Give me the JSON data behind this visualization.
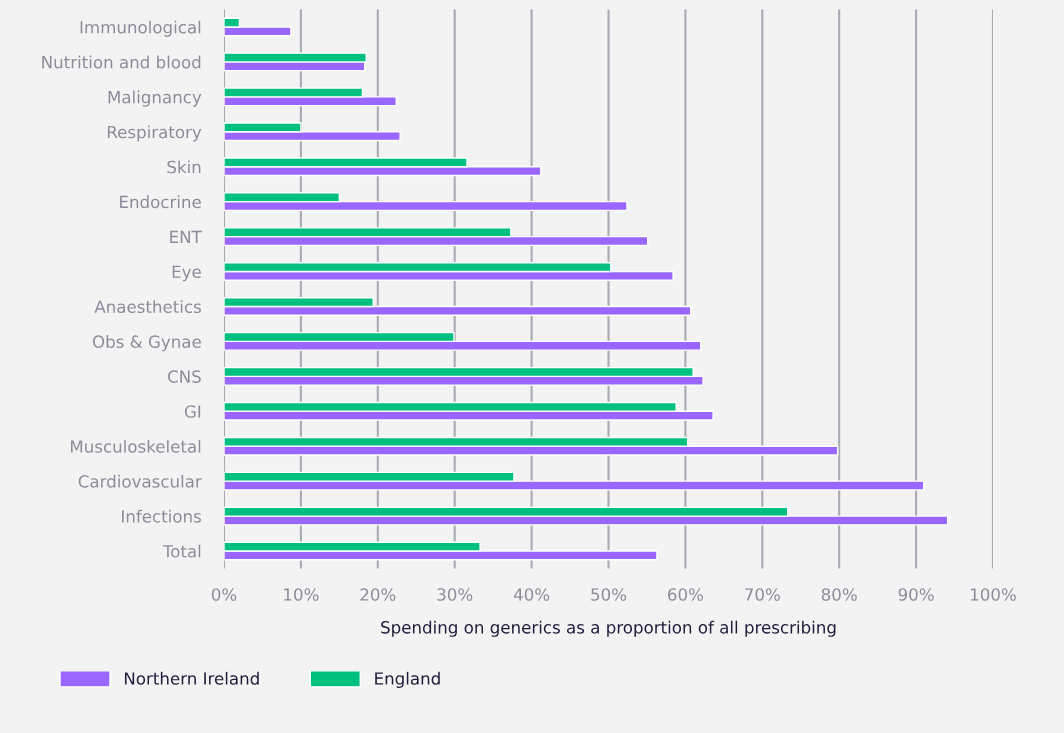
{
  "chart_data": {
    "type": "bar",
    "orientation": "horizontal",
    "xlabel": "Spending on generics as a proportion of all prescribing",
    "categories": [
      "Immunological",
      "Nutrition and blood",
      "Malignancy",
      "Respiratory",
      "Skin",
      "Endocrine",
      "ENT",
      "Eye",
      "Anaesthetics",
      "Obs & Gynae",
      "CNS",
      "GI",
      "Musculoskeletal",
      "Cardiovascular",
      "Infections",
      "Total"
    ],
    "series": [
      {
        "name": "Northern Ireland",
        "color": "#9966ff",
        "values": [
          8.7,
          18.3,
          22.4,
          22.9,
          41.2,
          52.4,
          55.1,
          58.4,
          60.7,
          62.0,
          62.3,
          63.6,
          79.8,
          91.0,
          94.1,
          56.3
        ]
      },
      {
        "name": "England",
        "color": "#00c07f",
        "values": [
          2.0,
          18.5,
          18.0,
          10.0,
          31.6,
          15.0,
          37.3,
          50.3,
          19.4,
          29.9,
          61.0,
          58.8,
          60.3,
          37.7,
          73.3,
          33.3
        ]
      }
    ],
    "xlim": [
      0,
      100
    ],
    "xticks": [
      {
        "value": 0,
        "label": "0%"
      },
      {
        "value": 10,
        "label": "10%"
      },
      {
        "value": 20,
        "label": "20%"
      },
      {
        "value": 30,
        "label": "30%"
      },
      {
        "value": 40,
        "label": "40%"
      },
      {
        "value": 50,
        "label": "50%"
      },
      {
        "value": 60,
        "label": "60%"
      },
      {
        "value": 70,
        "label": "70%"
      },
      {
        "value": 80,
        "label": "80%"
      },
      {
        "value": 90,
        "label": "90%"
      },
      {
        "value": 100,
        "label": "100%"
      }
    ],
    "grid": "x",
    "legend": "bottom left"
  }
}
